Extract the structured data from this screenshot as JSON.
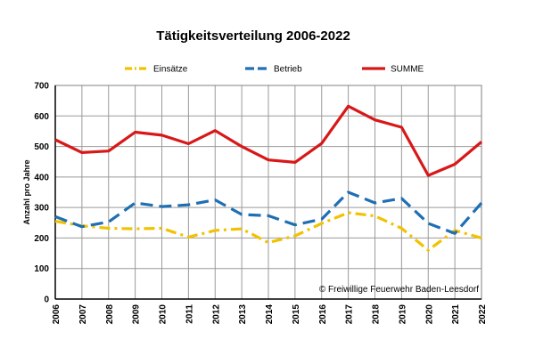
{
  "chart_data": {
    "type": "line",
    "title": "Tätigkeitsverteilung 2006-2022",
    "xlabel": "",
    "ylabel": "Anzahl pro Jahre",
    "ylim": [
      0,
      700
    ],
    "yticks": [
      0,
      100,
      200,
      300,
      400,
      500,
      600,
      700
    ],
    "grid": true,
    "legend_position": "top",
    "categories": [
      "2006",
      "2007",
      "2008",
      "2009",
      "2010",
      "2011",
      "2012",
      "2013",
      "2014",
      "2015",
      "2016",
      "2017",
      "2018",
      "2019",
      "2020",
      "2021",
      "2022"
    ],
    "series": [
      {
        "name": "Einsätze",
        "color": "#f2c200",
        "style": "dashdot",
        "values": [
          255,
          240,
          232,
          230,
          232,
          203,
          225,
          230,
          185,
          207,
          248,
          283,
          272,
          232,
          160,
          225,
          200
        ]
      },
      {
        "name": "Betrieb",
        "color": "#1f6fb4",
        "style": "dashed",
        "values": [
          270,
          237,
          253,
          315,
          303,
          309,
          325,
          277,
          273,
          243,
          262,
          350,
          315,
          330,
          248,
          215,
          315
        ]
      },
      {
        "name": "SUMME",
        "color": "#d81818",
        "style": "solid",
        "values": [
          522,
          480,
          485,
          547,
          537,
          509,
          552,
          500,
          456,
          448,
          510,
          632,
          587,
          563,
          405,
          442,
          515
        ]
      }
    ],
    "annotation": "© Freiwillige Feuerwehr Baden-Leesdorf"
  }
}
